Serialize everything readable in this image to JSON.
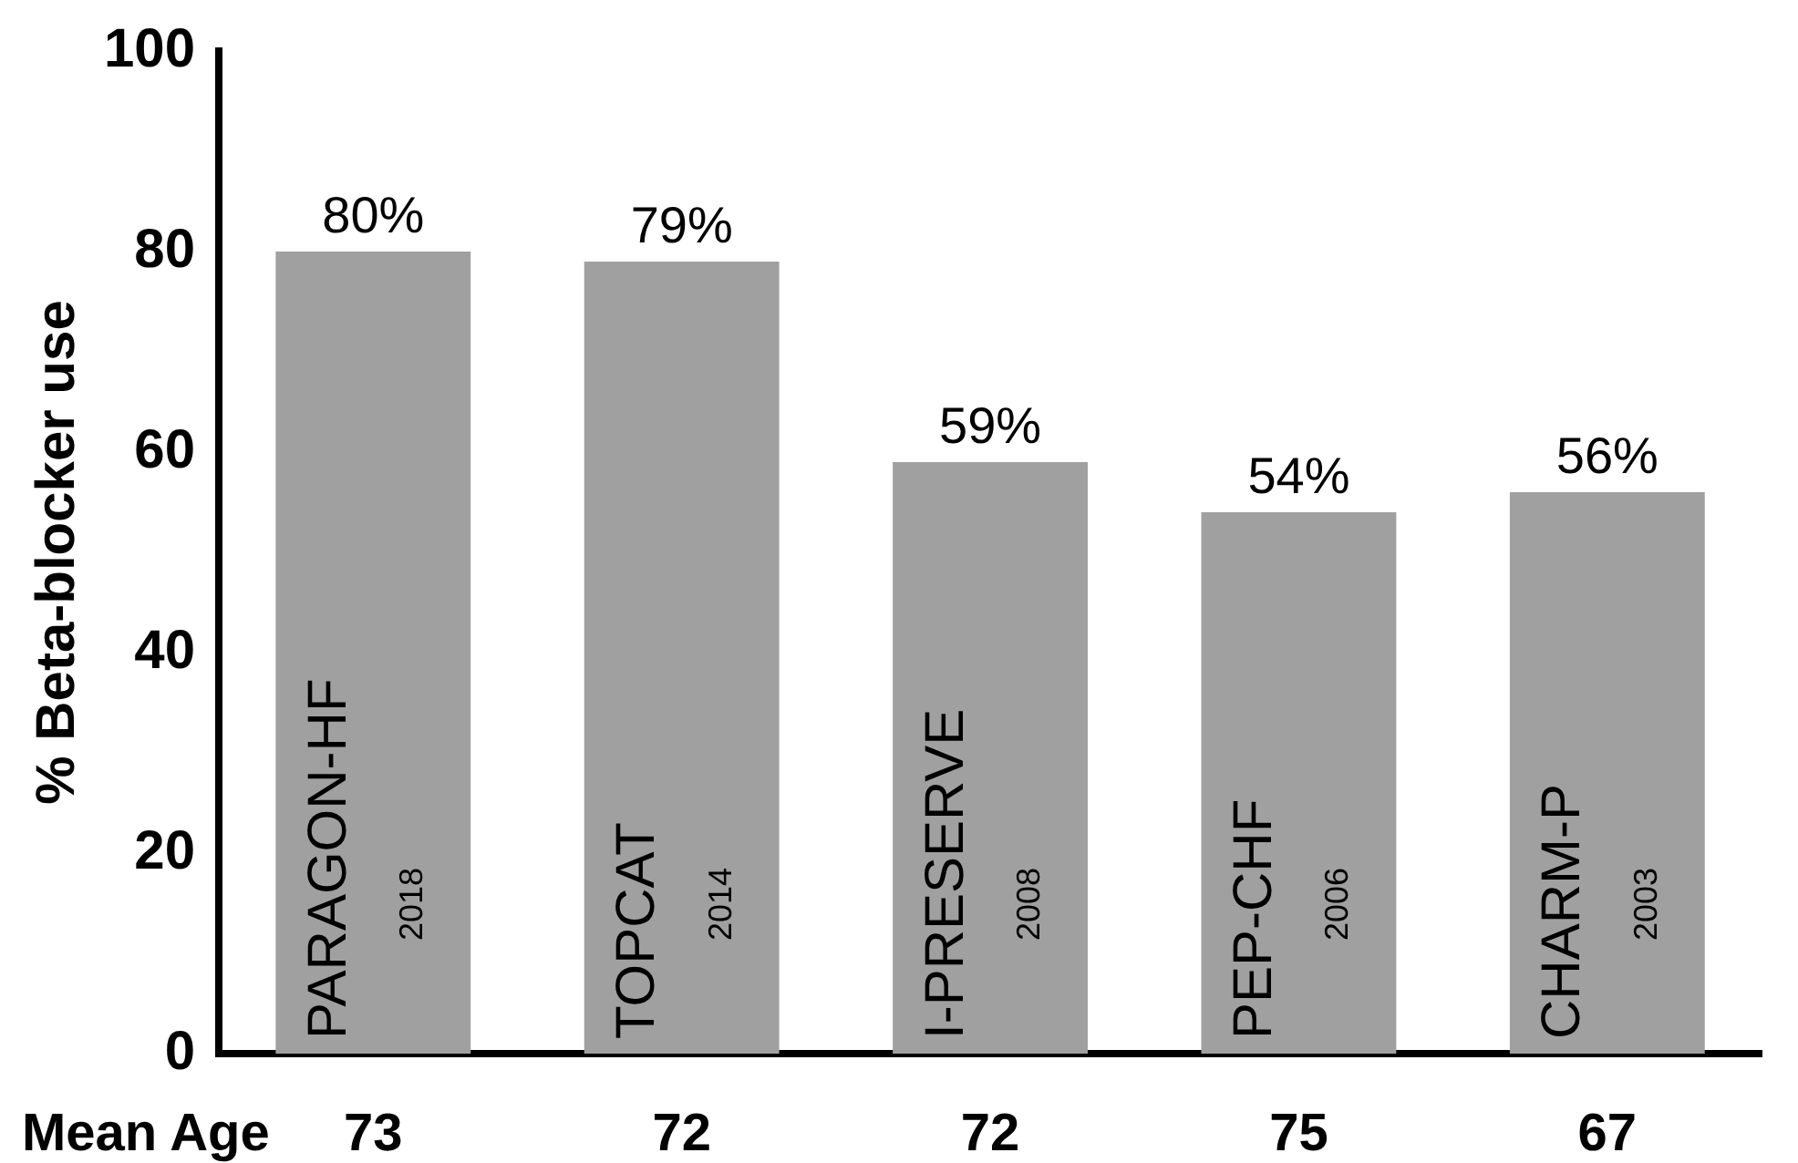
{
  "chart_data": {
    "type": "bar",
    "ylabel": "% Beta-blocker use",
    "xlabel": "Mean Age",
    "categories": [
      "PARAGON-HF",
      "TOPCAT",
      "I-PRESERVE",
      "PEP-CHF",
      "CHARM-P"
    ],
    "values": [
      80,
      79,
      59,
      54,
      56
    ],
    "color": "#a0a0a0",
    "value_labels": [
      "80%",
      "79%",
      "59%",
      "54%",
      "56%"
    ],
    "ylim": [
      0,
      100
    ],
    "yticks": [
      0,
      20,
      40,
      60,
      80,
      100
    ],
    "grid": false,
    "legend": false,
    "annotations": [
      "2018",
      "2014",
      "2008",
      "2006",
      "2003",
      "73",
      "72",
      "72",
      "75",
      "67"
    ]
  }
}
